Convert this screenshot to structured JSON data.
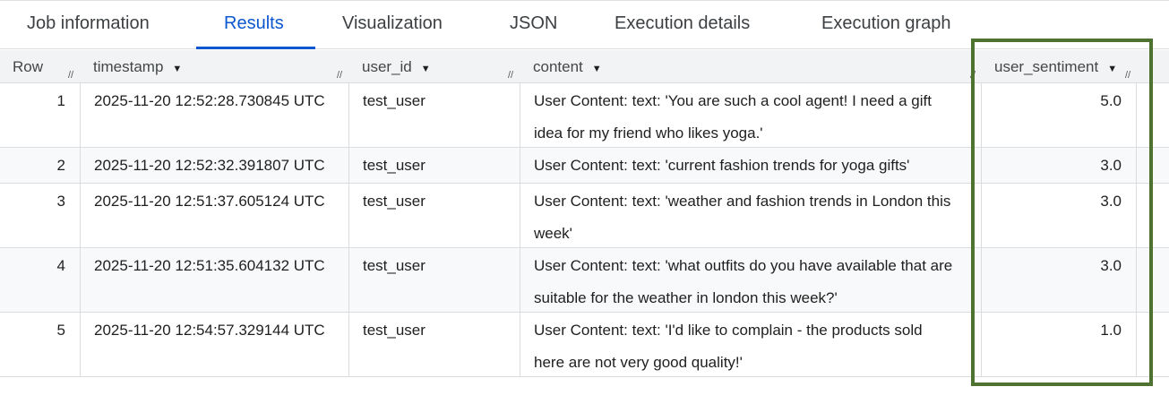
{
  "tabs": [
    {
      "label": "Job information"
    },
    {
      "label": "Results",
      "active": true
    },
    {
      "label": "Visualization"
    },
    {
      "label": "JSON"
    },
    {
      "label": "Execution details"
    },
    {
      "label": "Execution graph"
    }
  ],
  "columns": {
    "row": "Row",
    "timestamp": "timestamp",
    "user_id": "user_id",
    "content": "content",
    "user_sentiment": "user_sentiment"
  },
  "rows": [
    {
      "row": "1",
      "timestamp": "2025-11-20 12:52:28.730845 UTC",
      "user_id": "test_user",
      "content": "User Content: text: 'You are such a cool agent! I need a gift idea for my friend who likes yoga.'",
      "user_sentiment": "5.0"
    },
    {
      "row": "2",
      "timestamp": "2025-11-20 12:52:32.391807 UTC",
      "user_id": "test_user",
      "content": "User Content: text: 'current fashion trends for yoga gifts'",
      "user_sentiment": "3.0"
    },
    {
      "row": "3",
      "timestamp": "2025-11-20 12:51:37.605124 UTC",
      "user_id": "test_user",
      "content": "User Content: text: 'weather and fashion trends in London this week'",
      "user_sentiment": "3.0"
    },
    {
      "row": "4",
      "timestamp": "2025-11-20 12:51:35.604132 UTC",
      "user_id": "test_user",
      "content": "User Content: text: 'what outfits do you have available that are suitable for the weather in london this week?'",
      "user_sentiment": "3.0"
    },
    {
      "row": "5",
      "timestamp": "2025-11-20 12:54:57.329144 UTC",
      "user_id": "test_user",
      "content": "User Content: text: 'I'd like to complain - the products sold here are not very good quality!'",
      "user_sentiment": "1.0"
    }
  ],
  "colors": {
    "accent": "#0b57d0",
    "highlight_box": "#4e7330"
  }
}
